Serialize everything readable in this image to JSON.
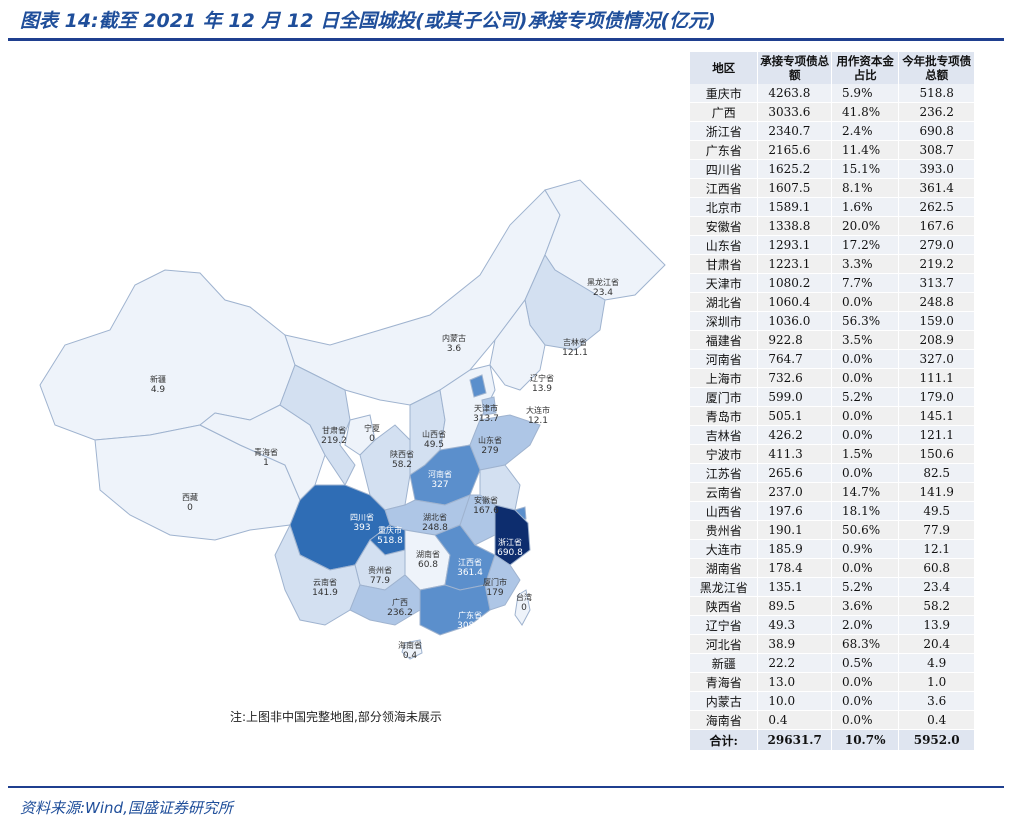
{
  "title": "图表 14:截至 2021 年 12 月 12 日全国城投(或其子公司)承接专项债情况(亿元)",
  "source": "资料来源:Wind,国盛证券研究所",
  "note": "注:上图非中国完整地图,部分领海未展示",
  "colors": {
    "accent": "#1f3f8f",
    "darkest": "#0d2d6e",
    "dark": "#2f6db5",
    "mid": "#5b8fcc",
    "light": "#aec6e6",
    "lighter": "#d3e0f1",
    "lightest": "#eef3fa"
  },
  "table": {
    "headers": [
      "地区",
      "承接专项债总额",
      "用作资本金占比",
      "今年批专项债总额"
    ],
    "rows": [
      [
        "重庆市",
        "4263.8",
        "5.9%",
        "518.8"
      ],
      [
        "广西",
        "3033.6",
        "41.8%",
        "236.2"
      ],
      [
        "浙江省",
        "2340.7",
        "2.4%",
        "690.8"
      ],
      [
        "广东省",
        "2165.6",
        "11.4%",
        "308.7"
      ],
      [
        "四川省",
        "1625.2",
        "15.1%",
        "393.0"
      ],
      [
        "江西省",
        "1607.5",
        "8.1%",
        "361.4"
      ],
      [
        "北京市",
        "1589.1",
        "1.6%",
        "262.5"
      ],
      [
        "安徽省",
        "1338.8",
        "20.0%",
        "167.6"
      ],
      [
        "山东省",
        "1293.1",
        "17.2%",
        "279.0"
      ],
      [
        "甘肃省",
        "1223.1",
        "3.3%",
        "219.2"
      ],
      [
        "天津市",
        "1080.2",
        "7.7%",
        "313.7"
      ],
      [
        "湖北省",
        "1060.4",
        "0.0%",
        "248.8"
      ],
      [
        "深圳市",
        "1036.0",
        "56.3%",
        "159.0"
      ],
      [
        "福建省",
        "922.8",
        "3.5%",
        "208.9"
      ],
      [
        "河南省",
        "764.7",
        "0.0%",
        "327.0"
      ],
      [
        "上海市",
        "732.6",
        "0.0%",
        "111.1"
      ],
      [
        "厦门市",
        "599.0",
        "5.2%",
        "179.0"
      ],
      [
        "青岛市",
        "505.1",
        "0.0%",
        "145.1"
      ],
      [
        "吉林省",
        "426.2",
        "0.0%",
        "121.1"
      ],
      [
        "宁波市",
        "411.3",
        "1.5%",
        "150.6"
      ],
      [
        "江苏省",
        "265.6",
        "0.0%",
        "82.5"
      ],
      [
        "云南省",
        "237.0",
        "14.7%",
        "141.9"
      ],
      [
        "山西省",
        "197.6",
        "18.1%",
        "49.5"
      ],
      [
        "贵州省",
        "190.1",
        "50.6%",
        "77.9"
      ],
      [
        "大连市",
        "185.9",
        "0.9%",
        "12.1"
      ],
      [
        "湖南省",
        "178.4",
        "0.0%",
        "60.8"
      ],
      [
        "黑龙江省",
        "135.1",
        "5.2%",
        "23.4"
      ],
      [
        "陕西省",
        "89.5",
        "3.6%",
        "58.2"
      ],
      [
        "辽宁省",
        "49.3",
        "2.0%",
        "13.9"
      ],
      [
        "河北省",
        "38.9",
        "68.3%",
        "20.4"
      ],
      [
        "新疆",
        "22.2",
        "0.5%",
        "4.9"
      ],
      [
        "青海省",
        "13.0",
        "0.0%",
        "1.0"
      ],
      [
        "内蒙古",
        "10.0",
        "0.0%",
        "3.6"
      ],
      [
        "海南省",
        "0.4",
        "0.0%",
        "0.4"
      ]
    ],
    "total": [
      "合计:",
      "29631.7",
      "10.7%",
      "5952.0"
    ]
  },
  "map_labels": [
    {
      "name": "黑龙江省",
      "value": "23.4"
    },
    {
      "name": "吉林省",
      "value": "121.1"
    },
    {
      "name": "辽宁省",
      "value": "13.9"
    },
    {
      "name": "大连市",
      "value": "12.1"
    },
    {
      "name": "内蒙古",
      "value": "3.6"
    },
    {
      "name": "新疆",
      "value": "4.9"
    },
    {
      "name": "西藏",
      "value": "0"
    },
    {
      "name": "青海省",
      "value": "1"
    },
    {
      "name": "甘肃省",
      "value": "219.2"
    },
    {
      "name": "宁夏",
      "value": "0"
    },
    {
      "name": "陕西省",
      "value": "58.2"
    },
    {
      "name": "山西省",
      "value": "49.5"
    },
    {
      "name": "天津市",
      "value": "313.7"
    },
    {
      "name": "山东省",
      "value": "279"
    },
    {
      "name": "河南省",
      "value": "327"
    },
    {
      "name": "四川省",
      "value": "393"
    },
    {
      "name": "重庆市",
      "value": "518.8"
    },
    {
      "name": "湖北省",
      "value": "248.8"
    },
    {
      "name": "安徽省",
      "value": "167.6"
    },
    {
      "name": "浙江省",
      "value": "690.8"
    },
    {
      "name": "湖南省",
      "value": "60.8"
    },
    {
      "name": "江西省",
      "value": "361.4"
    },
    {
      "name": "贵州省",
      "value": "77.9"
    },
    {
      "name": "云南省",
      "value": "141.9"
    },
    {
      "name": "广西",
      "value": "236.2"
    },
    {
      "name": "广东省",
      "value": "308.7"
    },
    {
      "name": "厦门市",
      "value": "179"
    },
    {
      "name": "台湾",
      "value": "0"
    },
    {
      "name": "海南省",
      "value": "0.4"
    }
  ]
}
